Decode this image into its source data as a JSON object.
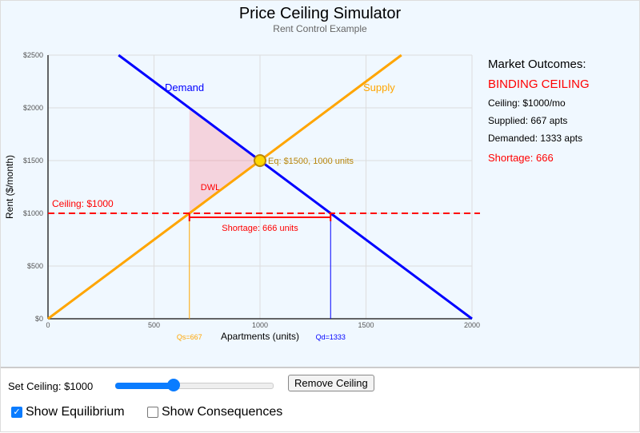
{
  "header": {
    "title": "Price Ceiling Simulator",
    "subtitle": "Rent Control Example"
  },
  "chart_data": {
    "type": "line",
    "xlabel": "Apartments (units)",
    "ylabel": "Rent ($/month)",
    "xlim": [
      0,
      2000
    ],
    "ylim": [
      0,
      2500
    ],
    "x_ticks": [
      "0",
      "500",
      "1000",
      "1500",
      "2000"
    ],
    "y_ticks": [
      "$0",
      "$500",
      "$1000",
      "$1500",
      "$2000",
      "$2500"
    ],
    "grid": true,
    "series": [
      {
        "name": "Demand",
        "color": "#0000ff",
        "points": [
          [
            333,
            2500
          ],
          [
            2000,
            0
          ]
        ]
      },
      {
        "name": "Supply",
        "color": "#ffa500",
        "points": [
          [
            0,
            0
          ],
          [
            1667,
            2500
          ]
        ]
      }
    ],
    "ceiling": {
      "label": "Ceiling: $1000",
      "value": 1000,
      "color": "#ff0000"
    },
    "equilibrium": {
      "label": "Eq: $1500, 1000 units",
      "price": 1500,
      "quantity": 1000
    },
    "dwl": {
      "label": "DWL",
      "points": [
        [
          667,
          1000
        ],
        [
          667,
          2000
        ],
        [
          1000,
          1500
        ]
      ]
    },
    "shortage": {
      "label": "Shortage: 666 units",
      "from": 667,
      "to": 1333
    },
    "qs": {
      "label": "Qs=667",
      "value": 667
    },
    "qd": {
      "label": "Qd=1333",
      "value": 1333
    }
  },
  "panel": {
    "heading": "Market Outcomes:",
    "status": "BINDING CEILING",
    "ceiling": "Ceiling: $1000/mo",
    "supplied": "Supplied: 667 apts",
    "demanded": "Demanded: 1333 apts",
    "shortage": "Shortage: 666"
  },
  "controls": {
    "set_label": "Set Ceiling: $1000",
    "slider_value": 1000,
    "slider_min": 0,
    "slider_max": 3000,
    "remove_label": "Remove Ceiling",
    "show_eq": "Show Equilibrium",
    "show_eq_checked": true,
    "show_cons": "Show Consequences",
    "show_cons_checked": false
  }
}
